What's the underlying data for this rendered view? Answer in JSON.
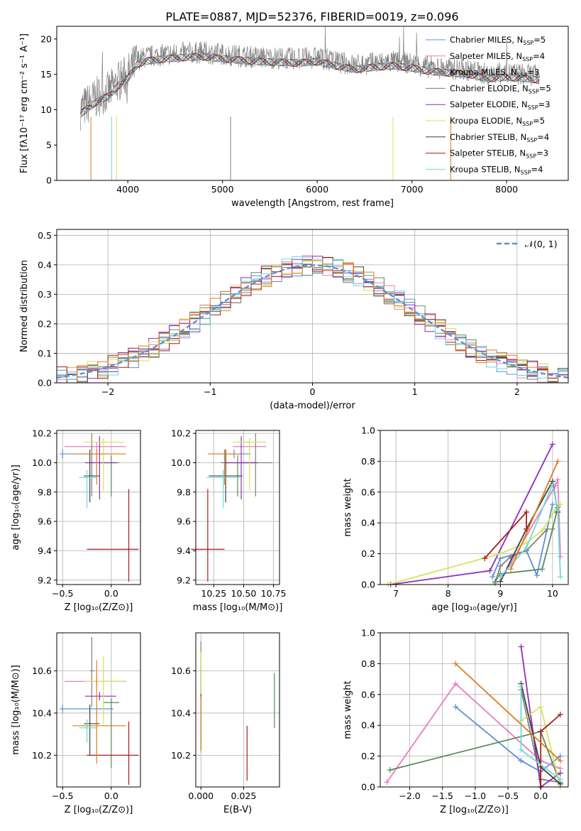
{
  "figure": {
    "title": "PLATE=0887, MJD=52376, FIBERID=0019, z=0.096"
  },
  "colors": {
    "steelblue": "#5f8fd9",
    "pink": "#e67fbf",
    "grey": "#808080",
    "green": "#5b8a5e",
    "purple": "#8e2fb5",
    "yellow": "#d5e35a",
    "dark": "#404040",
    "red": "#a51f1f",
    "cyan": "#6fd8dc",
    "orange": "#e07b1a"
  },
  "chart_data": [
    {
      "id": "spectrum",
      "type": "line",
      "xlabel": "wavelength [Angstrom, rest frame]",
      "ylabel": "Flux [fλ10⁻¹⁷ erg cm⁻² s⁻¹ A⁻¹]",
      "xlim": [
        3250,
        8650
      ],
      "ylim": [
        0,
        21.8
      ],
      "xticks": [
        4000,
        5000,
        6000,
        7000,
        8000
      ],
      "yticks": [
        0,
        5,
        10,
        15,
        20
      ],
      "grid": false,
      "legend_position": "top-right",
      "observed_envelope": {
        "x": [
          3500,
          3600,
          3700,
          3800,
          3900,
          4000,
          4100,
          4200,
          4400,
          4600,
          4800,
          5000,
          5200,
          5400,
          5600,
          5800,
          6000,
          6200,
          6400,
          6600,
          6800,
          7000,
          7200,
          7400,
          7600,
          7800,
          8000,
          8200,
          8350
        ],
        "y": [
          10,
          11,
          12,
          12.5,
          14,
          15,
          17,
          17.5,
          17.8,
          18,
          18.1,
          17.8,
          17.6,
          17.4,
          17.3,
          17.2,
          17.4,
          16.8,
          16.3,
          16.6,
          16.8,
          16.5,
          16.0,
          15.8,
          15.6,
          15.0,
          15.2,
          15.0,
          14.8
        ]
      },
      "series": [
        {
          "name": "Chabrier MILES, N_SSP=5",
          "color_key": "steelblue"
        },
        {
          "name": "Salpeter MILES, N_SSP=4",
          "color_key": "pink"
        },
        {
          "name": "Kroupa MILES, N_SSP=3",
          "color_key": "grey"
        },
        {
          "name": "Chabrier ELODIE, N_SSP=5",
          "color_key": "green"
        },
        {
          "name": "Salpeter ELODIE, N_SSP=3",
          "color_key": "purple"
        },
        {
          "name": "Kroupa ELODIE, N_SSP=5",
          "color_key": "yellow"
        },
        {
          "name": "Chabrier STELIB, N_SSP=4",
          "color_key": "dark"
        },
        {
          "name": "Salpeter STELIB, N_SSP=3",
          "color_key": "red"
        },
        {
          "name": "Kroupa STELIB, N_SSP=4",
          "color_key": "cyan"
        }
      ]
    },
    {
      "id": "residual_hist",
      "type": "bar",
      "xlabel": "(data-model)/error",
      "ylabel": "Normed distribution",
      "xlim": [
        -2.5,
        2.5
      ],
      "ylim": [
        0,
        0.52
      ],
      "xticks": [
        -2,
        -1,
        0,
        1,
        2
      ],
      "yticks": [
        0.0,
        0.1,
        0.2,
        0.3,
        0.4,
        0.5
      ],
      "grid": true,
      "legend_position": "top-right",
      "reference_curve": {
        "name": "𝒩(0, 1)",
        "style": "dashed",
        "color_key": "steelblue"
      },
      "bin_width": 0.1
    },
    {
      "id": "age_vs_Z",
      "type": "scatter",
      "xlabel": "Z [log₁₀(Z/Z⊙)]",
      "ylabel": "age  [log₁₀(age/yr)]",
      "xlim": [
        -0.56,
        0.3
      ],
      "ylim": [
        9.17,
        10.22
      ],
      "xticks": [
        -0.5,
        0.0
      ],
      "xticklabels": [
        "−0.5",
        "0.0"
      ],
      "yticks": [
        9.2,
        9.4,
        9.6,
        9.8,
        10.0,
        10.2
      ],
      "grid": true
    },
    {
      "id": "age_vs_mass",
      "type": "scatter",
      "xlabel": "mass [log₁₀(M/M⊙)]",
      "xlim": [
        10.1,
        10.8
      ],
      "ylim": [
        9.17,
        10.22
      ],
      "xticks": [
        10.25,
        10.5,
        10.75
      ],
      "xticklabels": [
        "10.25",
        "10.50",
        "10.75"
      ],
      "yticks": [
        9.2,
        9.4,
        9.6,
        9.8,
        10.0,
        10.2
      ],
      "grid": true
    },
    {
      "id": "weight_vs_age",
      "type": "line",
      "xlabel": "age  [log₁₀(age/yr)]",
      "ylabel": "mass weight",
      "xlim": [
        6.7,
        10.3
      ],
      "ylim": [
        0,
        1.0
      ],
      "xticks": [
        7,
        8,
        9,
        10
      ],
      "yticks": [
        0.0,
        0.2,
        0.4,
        0.6,
        0.8,
        1.0
      ],
      "grid": true
    },
    {
      "id": "mass_vs_Z",
      "type": "scatter",
      "xlabel": "Z [log₁₀(Z/Z⊙)]",
      "ylabel": "mass [log₁₀(M/M⊙)]",
      "xlim": [
        -0.56,
        0.3
      ],
      "ylim": [
        10.05,
        10.78
      ],
      "xticks": [
        -0.5,
        0.0
      ],
      "xticklabels": [
        "−0.5",
        "0.0"
      ],
      "yticks": [
        10.2,
        10.4,
        10.6
      ],
      "grid": true
    },
    {
      "id": "mass_vs_ebv",
      "type": "scatter",
      "xlabel": "E(B-V)",
      "xlim": [
        -0.003,
        0.046
      ],
      "ylim": [
        10.05,
        10.78
      ],
      "xticks": [
        0.0,
        0.025
      ],
      "xticklabels": [
        "0.000",
        "0.025"
      ],
      "yticks": [
        10.2,
        10.4,
        10.6
      ],
      "grid": true
    },
    {
      "id": "weight_vs_Z",
      "type": "line",
      "xlabel": "Z [log₁₀(Z/Z⊙)]",
      "ylabel": "mass weight",
      "xlim": [
        -2.45,
        0.42
      ],
      "ylim": [
        0,
        1.0
      ],
      "xticks": [
        -2.0,
        -1.5,
        -1.0,
        -0.5,
        0.0
      ],
      "xticklabels": [
        "−2.0",
        "−1.5",
        "−1.0",
        "−0.5",
        "0.0"
      ],
      "yticks": [
        0.0,
        0.2,
        0.4,
        0.6,
        0.8,
        1.0
      ],
      "grid": true
    }
  ],
  "fits": [
    {
      "color_key": "steelblue",
      "Z": -0.5,
      "Zerr": 0.0,
      "Zl": -0.53,
      "Zr": 0.02,
      "age": 10.06,
      "age_lo": 10.06,
      "age_hi": 10.06,
      "mass": 10.42,
      "mass_lo": 10.42,
      "mass_hi": 10.42,
      "ebv": 0.0,
      "ages": [
        8.85,
        9.0,
        9.5,
        9.7,
        10.0
      ],
      "weights": [
        0.05,
        0.17,
        0.22,
        0.06,
        0.52
      ],
      "Zs": [
        -1.3,
        -0.3,
        0.0,
        0.3
      ],
      "wZ": [
        0.52,
        0.17,
        0.1,
        0.2
      ]
    },
    {
      "color_key": "pink",
      "Z": -0.15,
      "Zl": -0.48,
      "Zr": 0.15,
      "age": 10.11,
      "age_lo": 10.11,
      "age_hi": 10.11,
      "mass": 10.55,
      "mass_lo": 10.55,
      "mass_hi": 10.55,
      "ebv": 0.0,
      "ages": [
        9.0,
        10.05,
        10.1,
        10.15
      ],
      "weights": [
        0.02,
        0.64,
        0.68,
        0.18
      ],
      "Zs": [
        -2.35,
        -1.3,
        0.0,
        0.3
      ],
      "wZ": [
        0.03,
        0.67,
        0.17,
        0.12
      ]
    },
    {
      "color_key": "grey",
      "Z": -0.2,
      "Zl": -0.22,
      "Zr": -0.17,
      "age": 10.0,
      "age_lo": 9.8,
      "age_hi": 10.17,
      "mass": 10.6,
      "mass_lo": 10.45,
      "mass_hi": 10.74,
      "ebv": 0.0,
      "ages": [
        8.9,
        9.0,
        9.2,
        9.5,
        9.9
      ],
      "weights": [
        0.01,
        0.12,
        0.18,
        0.22,
        0.36
      ],
      "Zs": [
        -0.3,
        0.0,
        0.3
      ],
      "wZ": [
        0.63,
        0.05,
        0.03
      ]
    },
    {
      "color_key": "green",
      "Z": 0.0,
      "Zl": -0.08,
      "Zr": 0.08,
      "age": 10.0,
      "age_lo": 9.8,
      "age_hi": 10.02,
      "mass": 10.45,
      "mass_lo": 10.16,
      "mass_hi": 10.45,
      "ebv": 0.043,
      "ages": [
        8.9,
        9.0,
        9.8,
        10.0,
        10.1
      ],
      "weights": [
        0.02,
        0.07,
        0.1,
        0.36,
        0.5
      ],
      "Zs": [
        -2.3,
        0.0,
        0.3
      ],
      "wZ": [
        0.11,
        0.36,
        0.02
      ]
    },
    {
      "color_key": "purple",
      "Z": -0.12,
      "Zl": -0.27,
      "Zr": 0.05,
      "age": 10.0,
      "age_lo": 9.78,
      "age_hi": 10.15,
      "mass": 10.48,
      "mass_lo": 10.48,
      "mass_hi": 10.48,
      "ebv": 0.0,
      "ages": [
        6.9,
        8.8,
        10.0
      ],
      "weights": [
        0.0,
        0.09,
        0.91
      ],
      "Zs": [
        -0.3,
        0.0,
        0.3
      ],
      "wZ": [
        0.91,
        0.0,
        0.09
      ]
    },
    {
      "color_key": "yellow",
      "Z": -0.08,
      "Zl": -0.28,
      "Zr": 0.13,
      "age": 10.14,
      "age_lo": 9.84,
      "age_hi": 10.14,
      "mass": 10.55,
      "mass_lo": 10.37,
      "mass_hi": 10.65,
      "ebv": 0.0,
      "ages": [
        6.85,
        9.0,
        9.5,
        9.8,
        10.05,
        10.15
      ],
      "weights": [
        0.0,
        0.2,
        0.27,
        0.35,
        0.48,
        0.52
      ],
      "Zs": [
        -0.3,
        0.0,
        0.3
      ],
      "wZ": [
        0.43,
        0.52,
        0.0
      ]
    },
    {
      "color_key": "dark",
      "Z": -0.22,
      "Zl": -0.28,
      "Zr": -0.12,
      "age": 9.91,
      "age_lo": 9.76,
      "age_hi": 10.06,
      "mass": 10.35,
      "mass_lo": 10.22,
      "mass_hi": 10.42,
      "ebv": 0.0,
      "ages": [
        9.0,
        9.5,
        10.0,
        10.1
      ],
      "weights": [
        0.02,
        0.36,
        0.67,
        0.47
      ],
      "Zs": [
        -0.3,
        0.0,
        0.3
      ],
      "wZ": [
        0.67,
        0.13,
        0.02
      ]
    },
    {
      "color_key": "red",
      "Z": 0.18,
      "Zl": -0.25,
      "Zr": 0.28,
      "age": 9.41,
      "age_lo": 9.22,
      "age_hi": 9.79,
      "mass": 10.2,
      "mass_lo": 10.08,
      "mass_hi": 10.34,
      "ebv": 0.027,
      "ages": [
        8.7,
        9.5,
        9.5
      ],
      "weights": [
        0.17,
        0.47,
        0.36
      ],
      "Zs": [
        0.0,
        0.0,
        0.3
      ],
      "wZ": [
        0.0,
        0.36,
        0.47
      ]
    },
    {
      "color_key": "cyan",
      "Z": -0.25,
      "Zl": -0.33,
      "Zr": -0.15,
      "age": 9.9,
      "age_lo": 9.72,
      "age_hi": 9.92,
      "mass": 10.33,
      "mass_lo": 10.28,
      "mass_hi": 10.35,
      "ebv": 0.0,
      "ages": [
        9.0,
        9.5,
        10.0,
        10.1,
        10.15
      ],
      "weights": [
        0.05,
        0.24,
        0.65,
        0.48,
        0.05
      ],
      "Zs": [
        -0.3,
        -0.3,
        0.3
      ],
      "wZ": [
        0.65,
        0.24,
        0.05
      ]
    },
    {
      "color_key": "orange",
      "Z": -0.15,
      "Zl": -0.4,
      "Zr": 0.15,
      "age": 10.06,
      "age_lo": 9.88,
      "age_hi": 10.06,
      "mass": 10.34,
      "mass_lo": 10.18,
      "mass_hi": 10.63,
      "ebv": 0.0,
      "ages": [
        9.2,
        10.1
      ],
      "weights": [
        0.1,
        0.8
      ],
      "Zs": [
        -1.3,
        0.3
      ],
      "wZ": [
        0.8,
        0.17
      ]
    }
  ]
}
